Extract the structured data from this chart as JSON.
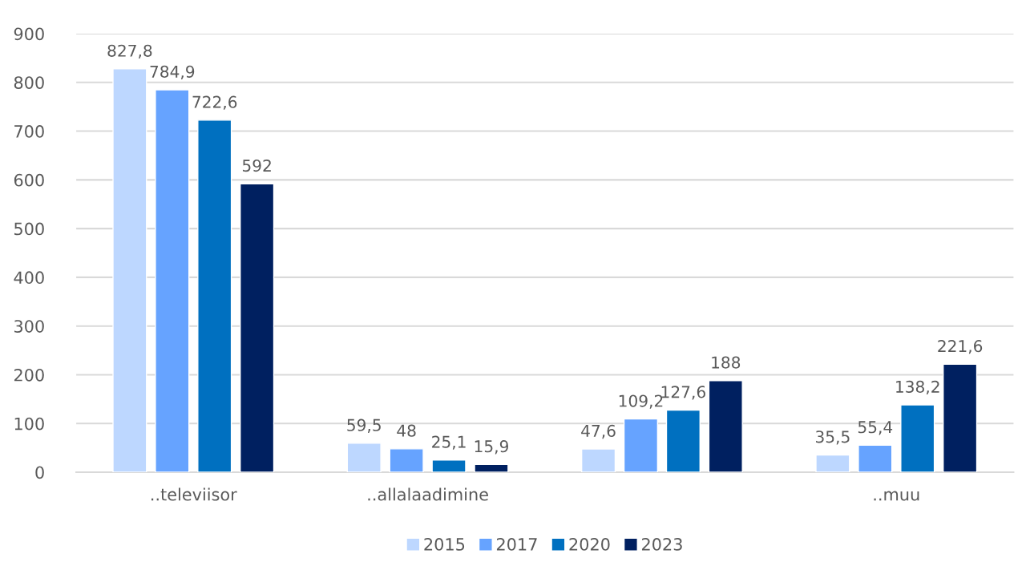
{
  "chart_data": {
    "type": "bar",
    "categories": [
      "..televiisor",
      "..allalaadimine",
      null,
      "..muu"
    ],
    "series": [
      {
        "name": "2015",
        "color": "#bdd7ff",
        "values": [
          827.8,
          59.5,
          47.6,
          35.5
        ],
        "value_labels": [
          "827,8",
          "59,5",
          "47,6",
          "35,5"
        ]
      },
      {
        "name": "2017",
        "color": "#66a3ff",
        "values": [
          784.9,
          48,
          109.2,
          55.4
        ],
        "value_labels": [
          "784,9",
          "48",
          "109,2",
          "55,4"
        ]
      },
      {
        "name": "2020",
        "color": "#0070c0",
        "values": [
          722.6,
          25.1,
          127.6,
          138.2
        ],
        "value_labels": [
          "722,6",
          "25,1",
          "127,6",
          "138,2"
        ]
      },
      {
        "name": "2023",
        "color": "#002060",
        "values": [
          592,
          15.9,
          188,
          221.6
        ],
        "value_labels": [
          "592",
          "15,9",
          "188",
          "221,6"
        ]
      }
    ],
    "ylim": [
      0,
      900
    ],
    "yticks": [
      0,
      100,
      200,
      300,
      400,
      500,
      600,
      700,
      800,
      900
    ],
    "grid": "y",
    "legend": "bottom"
  }
}
